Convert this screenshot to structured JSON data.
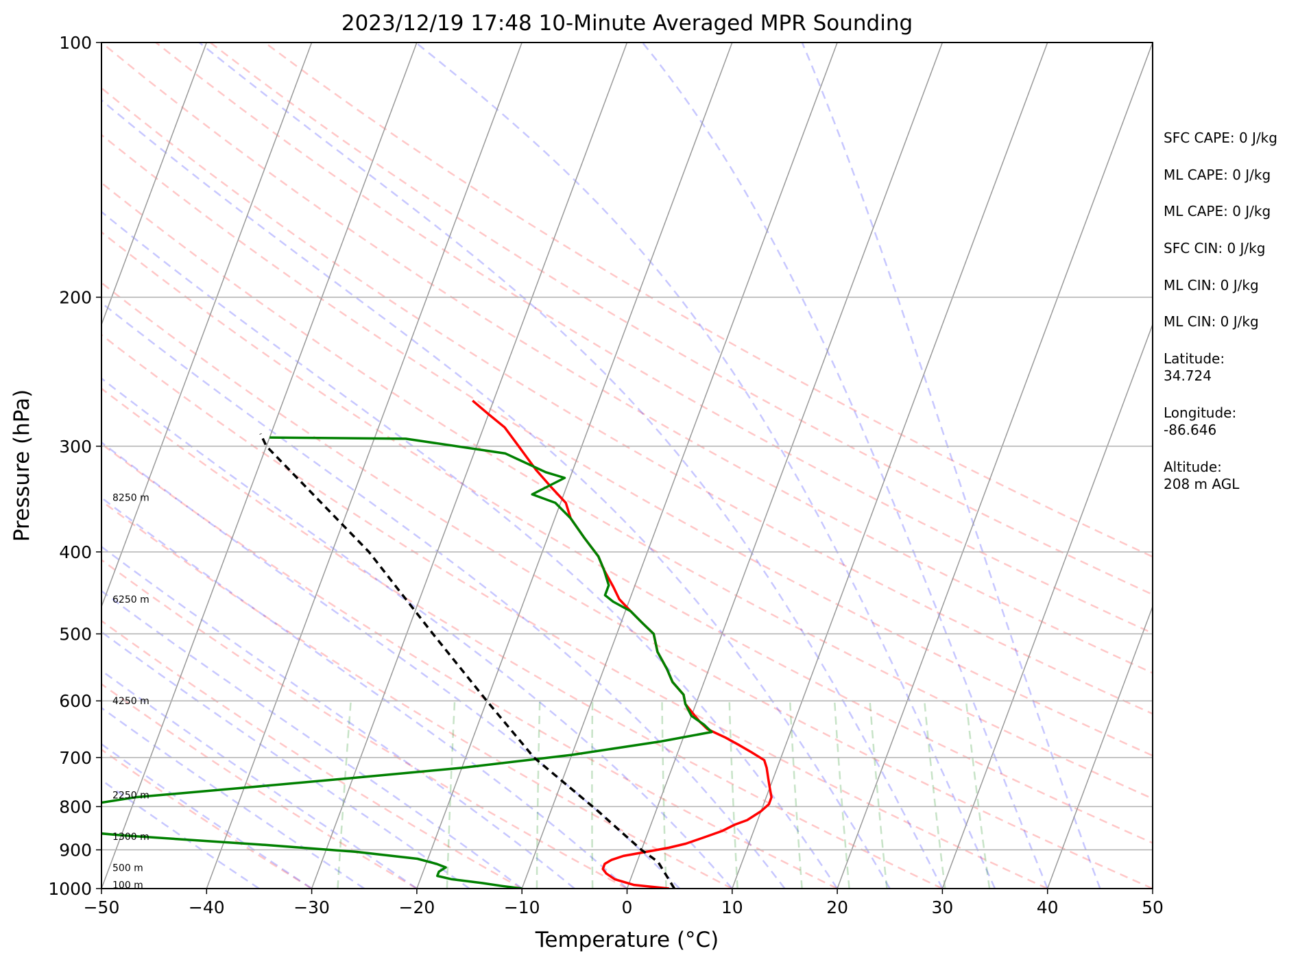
{
  "chart_data": {
    "type": "line",
    "title": "2023/12/19 17:48 10-Minute Averaged MPR Sounding",
    "xlabel": "Temperature (°C)",
    "ylabel": "Pressure (hPa)",
    "xlim": [
      -50,
      50
    ],
    "ylim": [
      1000,
      100
    ],
    "y_scale": "log",
    "x_ticks": [
      "−50",
      "−40",
      "−30",
      "−20",
      "−10",
      "0",
      "10",
      "20",
      "30",
      "40",
      "50"
    ],
    "y_ticks": [
      "100",
      "200",
      "300",
      "400",
      "500",
      "600",
      "700",
      "800",
      "900",
      "1000"
    ],
    "height_labels": [
      "8250 m",
      "6250 m",
      "4250 m",
      "2250 m",
      "1300 m",
      "500 m",
      "100 m"
    ],
    "annotations": [
      "SFC CAPE: 0 J/kg",
      "ML CAPE: 0 J/kg",
      "ML CAPE: 0 J/kg",
      "SFC CIN: 0 J/kg",
      "ML CIN: 0 J/kg",
      "ML CIN: 0 J/kg",
      "Latitude:",
      "34.724",
      "Longitude:",
      "-86.646",
      "Altitude:",
      "208 m AGL"
    ],
    "grid": true,
    "series": [
      {
        "color": "#ff0000",
        "data": [
          [
            1000,
            4
          ],
          [
            990,
            0.5
          ],
          [
            975,
            -1.5
          ],
          [
            960,
            -2.5
          ],
          [
            948,
            -3
          ],
          [
            935,
            -3
          ],
          [
            925,
            -2.5
          ],
          [
            915,
            -1.5
          ],
          [
            905,
            0.5
          ],
          [
            895,
            2.5
          ],
          [
            885,
            4
          ],
          [
            870,
            5.5
          ],
          [
            855,
            7
          ],
          [
            840,
            8
          ],
          [
            830,
            9
          ],
          [
            810,
            10
          ],
          [
            795,
            10.5
          ],
          [
            780,
            10.5
          ],
          [
            760,
            10
          ],
          [
            740,
            9.5
          ],
          [
            720,
            9
          ],
          [
            705,
            8.5
          ],
          [
            690,
            7
          ],
          [
            676,
            5.5
          ],
          [
            663,
            4
          ],
          [
            648,
            2
          ],
          [
            635,
            1
          ],
          [
            620,
            0
          ],
          [
            605,
            -1
          ],
          [
            590,
            -1.5
          ],
          [
            570,
            -3
          ],
          [
            550,
            -4
          ],
          [
            525,
            -5.5
          ],
          [
            500,
            -6.5
          ],
          [
            485,
            -8
          ],
          [
            470,
            -9.5
          ],
          [
            455,
            -11
          ],
          [
            440,
            -12
          ],
          [
            420,
            -13.5
          ],
          [
            405,
            -14.5
          ],
          [
            385,
            -16.5
          ],
          [
            365,
            -18.5
          ],
          [
            350,
            -19.5
          ],
          [
            335,
            -21.5
          ],
          [
            320,
            -23.5
          ],
          [
            300,
            -26
          ],
          [
            285,
            -28
          ],
          [
            275,
            -30
          ],
          [
            265,
            -32
          ]
        ]
      },
      {
        "color": "#008000",
        "data": [
          [
            1000,
            -10
          ],
          [
            993,
            -12
          ],
          [
            985,
            -14
          ],
          [
            975,
            -17
          ],
          [
            966,
            -18.5
          ],
          [
            955,
            -18.5
          ],
          [
            944,
            -18
          ],
          [
            935,
            -19
          ],
          [
            922,
            -21
          ],
          [
            905,
            -27
          ],
          [
            888,
            -36
          ],
          [
            865,
            -50
          ],
          [
            848,
            -58
          ],
          [
            838,
            -62
          ],
          [
            832,
            -60
          ],
          [
            826,
            -62
          ],
          [
            810,
            -58
          ],
          [
            795,
            -54
          ],
          [
            780,
            -50
          ],
          [
            760,
            -40
          ],
          [
            740,
            -30
          ],
          [
            720,
            -20
          ],
          [
            695,
            -10
          ],
          [
            670,
            -2
          ],
          [
            653,
            2.5
          ],
          [
            640,
            1.5
          ],
          [
            625,
            0
          ],
          [
            605,
            -1
          ],
          [
            590,
            -1.5
          ],
          [
            570,
            -3
          ],
          [
            550,
            -4
          ],
          [
            525,
            -5.5
          ],
          [
            500,
            -6.5
          ],
          [
            485,
            -8
          ],
          [
            470,
            -9.5
          ],
          [
            458,
            -11.5
          ],
          [
            450,
            -12.5
          ],
          [
            438,
            -12.5
          ],
          [
            420,
            -13.5
          ],
          [
            405,
            -14.5
          ],
          [
            385,
            -16.5
          ],
          [
            365,
            -18.5
          ],
          [
            350,
            -20.5
          ],
          [
            342,
            -23
          ],
          [
            327,
            -20.5
          ],
          [
            322,
            -22.5
          ],
          [
            306,
            -27
          ],
          [
            294,
            -37
          ],
          [
            293,
            -50
          ]
        ]
      },
      {
        "color": "#000000",
        "data": [
          [
            1000,
            4.5
          ],
          [
            930,
            2
          ],
          [
            900,
            0
          ],
          [
            850,
            -3
          ],
          [
            810,
            -5.5
          ],
          [
            700,
            -13.5
          ],
          [
            600,
            -20
          ],
          [
            500,
            -27.5
          ],
          [
            400,
            -36.5
          ],
          [
            300,
            -50
          ],
          [
            290,
            -51
          ]
        ]
      }
    ]
  }
}
